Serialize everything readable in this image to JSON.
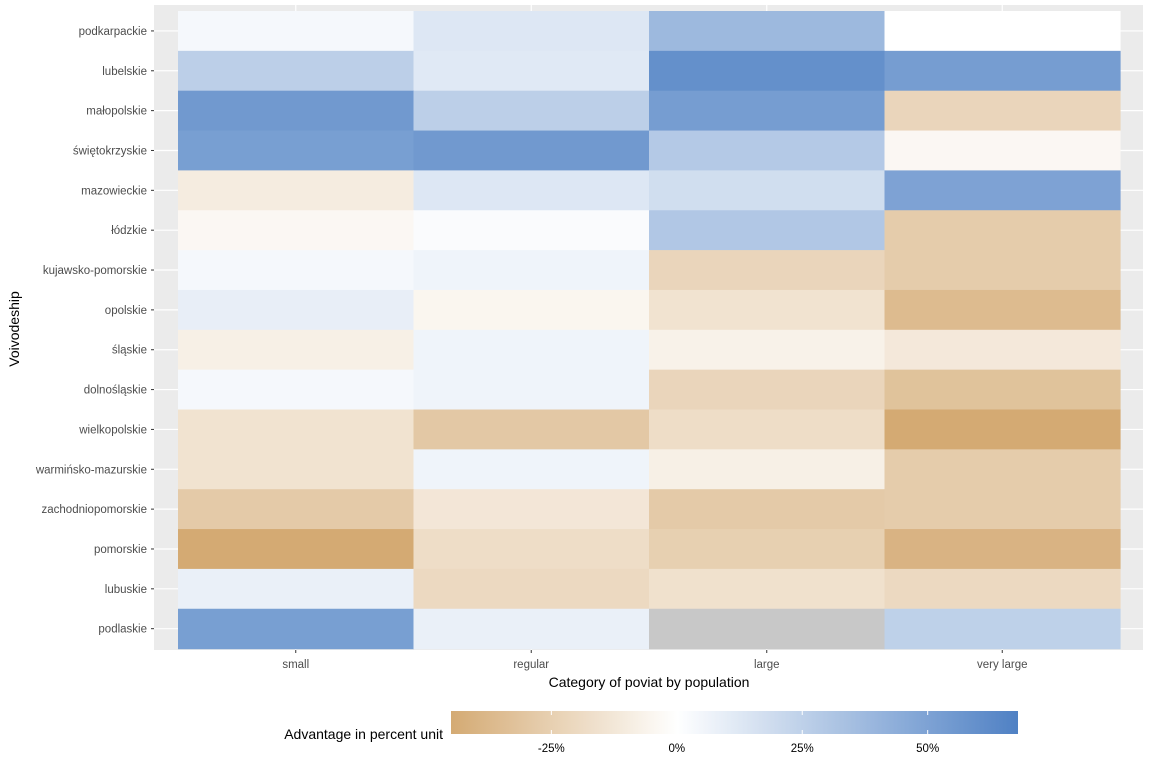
{
  "chart_data": {
    "type": "heatmap",
    "xlabel": "Category of poviat by population",
    "ylabel": "Voivodeship",
    "x_categories": [
      "small",
      "regular",
      "large",
      "very large"
    ],
    "y_categories": [
      "podkarpackie",
      "lubelskie",
      "małopolskie",
      "świętokrzyskie",
      "mazowieckie",
      "łódzkie",
      "kujawsko-pomorskie",
      "opolskie",
      "śląskie",
      "dolnośląskie",
      "wielkopolskie",
      "warmińsko-mazurskie",
      "zachodniopomorskie",
      "pomorskie",
      "lubuskie",
      "podlaskie"
    ],
    "values": [
      [
        4,
        13,
        38,
        0
      ],
      [
        26,
        12,
        60,
        53
      ],
      [
        55,
        26,
        53,
        -22
      ],
      [
        52,
        55,
        29,
        -4
      ],
      [
        -10,
        13,
        18,
        50
      ],
      [
        -4,
        2,
        30,
        -27
      ],
      [
        4,
        6,
        -22,
        -27
      ],
      [
        9,
        -5,
        -15,
        -36
      ],
      [
        -8,
        6,
        -7,
        -12
      ],
      [
        4,
        6,
        -22,
        -32
      ],
      [
        -15,
        -29,
        -18,
        -45
      ],
      [
        -15,
        6,
        -8,
        -27
      ],
      [
        -28,
        -13,
        -28,
        -27
      ],
      [
        -45,
        -18,
        -25,
        -40
      ],
      [
        8,
        -20,
        -16,
        -20
      ],
      [
        52,
        8,
        null,
        25
      ]
    ],
    "missing_color": "#c8c8c8",
    "grid": true,
    "legend": {
      "title": "Advantage in percent unit",
      "position": "bottom",
      "tick_values": [
        -25,
        0,
        25,
        50
      ],
      "tick_labels": [
        "-25%",
        "0%",
        "25%",
        "50%"
      ],
      "range": [
        -45,
        68
      ],
      "low_color": "#d4aa73",
      "mid_color": "#ffffff",
      "high_color": "#4f81c4"
    }
  }
}
